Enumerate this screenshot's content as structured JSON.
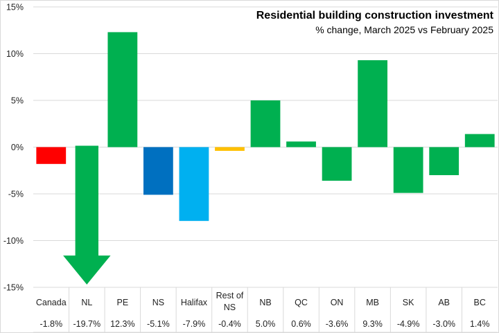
{
  "chart_data": {
    "type": "bar",
    "title": "Residential building construction investment",
    "subtitle": "% change, March 2025 vs February 2025",
    "xlabel": "",
    "ylabel": "",
    "ylim": [
      -15,
      15
    ],
    "yticks": [
      15,
      10,
      5,
      0,
      -5,
      -10,
      -15
    ],
    "ytick_labels": [
      "15%",
      "10%",
      "5%",
      "0%",
      "-5%",
      "-10%",
      "-15%"
    ],
    "grid": true,
    "categories": [
      "Canada",
      "NL",
      "PE",
      "NS",
      "Halifax",
      "Rest of NS",
      "NB",
      "QC",
      "ON",
      "MB",
      "SK",
      "AB",
      "BC"
    ],
    "values": [
      -1.8,
      -19.7,
      12.3,
      -5.1,
      -7.9,
      -0.4,
      5.0,
      0.6,
      -3.6,
      9.3,
      -4.9,
      -3.0,
      1.4
    ],
    "value_labels": [
      "-1.8%",
      "-19.7%",
      "12.3%",
      "-5.1%",
      "-7.9%",
      "-0.4%",
      "5.0%",
      "0.6%",
      "-3.6%",
      "9.3%",
      "-4.9%",
      "-3.0%",
      "1.4%"
    ],
    "colors": [
      "#ff0000",
      "#00b050",
      "#00b050",
      "#0070c0",
      "#00b0f0",
      "#ffc000",
      "#00b050",
      "#00b050",
      "#00b050",
      "#00b050",
      "#00b050",
      "#00b050",
      "#00b050"
    ],
    "annotations": [
      "NL bar truncated with downward arrow (value exceeds axis minimum)"
    ],
    "data_table": true
  }
}
